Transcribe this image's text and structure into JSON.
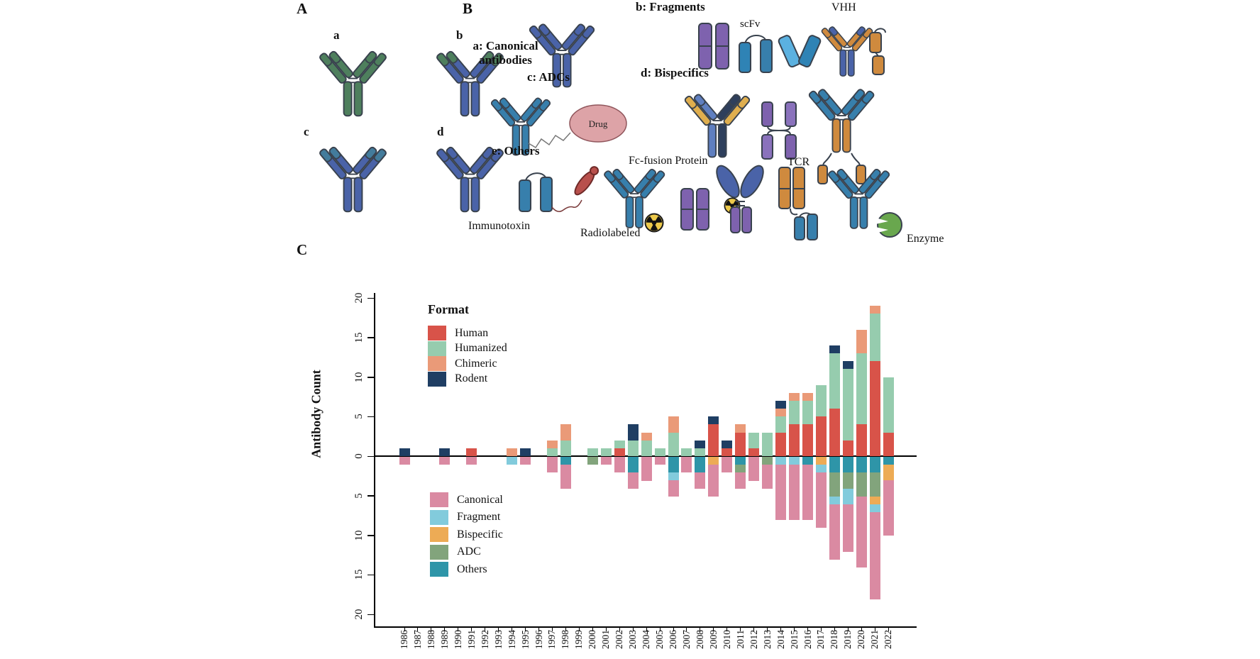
{
  "figure": {
    "panel_a_label": "A",
    "panel_b_label": "B",
    "panel_c_label": "C"
  },
  "panel_a": {
    "antibody_labels": [
      "a",
      "b",
      "c",
      "d"
    ]
  },
  "panel_b": {
    "heading_canonical": "a: Canonical antibodies",
    "heading_fragments": "b: Fragments",
    "heading_adcs": "c: ADCs",
    "heading_bispecifics": "d: Bispecifics",
    "heading_others": "e: Others",
    "label_scfv": "scFv",
    "label_vhh": "VHH",
    "label_drug": "Drug",
    "label_immunotoxin": "Immunotoxin",
    "label_radiolabeled": "Radiolabeled",
    "label_fc_fusion": "Fc-fusion Protein",
    "label_tcr": "TCR",
    "label_enzyme": "Enzyme"
  },
  "chart_data": {
    "type": "bar",
    "subtype": "mirrored-stacked",
    "title": "",
    "xlabel": "",
    "ylabel": "Antibody Count",
    "ylim_top": [
      0,
      20
    ],
    "ylim_bottom": [
      0,
      20
    ],
    "grid": false,
    "y_ticks_top": [
      20,
      15,
      10,
      5,
      0
    ],
    "y_ticks_bottom": [
      5,
      10,
      15,
      20
    ],
    "categories": [
      "1986",
      "1987",
      "1988",
      "1989",
      "1990",
      "1991",
      "1992",
      "1993",
      "1994",
      "1995",
      "1996",
      "1997",
      "1998",
      "1999",
      "2000",
      "2001",
      "2002",
      "2003",
      "2004",
      "2005",
      "2006",
      "2007",
      "2008",
      "2009",
      "2010",
      "2011",
      "2012",
      "2013",
      "2014",
      "2015",
      "2016",
      "2017",
      "2018",
      "2019",
      "2020",
      "2021",
      "2022"
    ],
    "format_legend_title": "Format",
    "series_above": [
      {
        "name": "Human",
        "color": "#d85349",
        "values": [
          0,
          0,
          0,
          0,
          0,
          1,
          0,
          0,
          0,
          0,
          0,
          0,
          0,
          0,
          0,
          0,
          1,
          0,
          0,
          0,
          0,
          0,
          0,
          4,
          1,
          3,
          1,
          0,
          3,
          4,
          4,
          5,
          6,
          2,
          4,
          12,
          3
        ]
      },
      {
        "name": "Humanized",
        "color": "#96ccae",
        "values": [
          0,
          0,
          0,
          0,
          0,
          0,
          0,
          0,
          0,
          0,
          0,
          1,
          2,
          0,
          1,
          1,
          1,
          2,
          2,
          1,
          3,
          1,
          1,
          0,
          0,
          0,
          2,
          3,
          2,
          3,
          3,
          4,
          7,
          9,
          9,
          6,
          7
        ]
      },
      {
        "name": "Chimeric",
        "color": "#ea9a78",
        "values": [
          0,
          0,
          0,
          0,
          0,
          0,
          0,
          0,
          1,
          0,
          0,
          1,
          2,
          0,
          0,
          0,
          0,
          0,
          1,
          0,
          2,
          0,
          0,
          0,
          0,
          1,
          0,
          0,
          1,
          1,
          1,
          0,
          0,
          0,
          3,
          1,
          0
        ]
      },
      {
        "name": "Rodent",
        "color": "#1f3e63",
        "values": [
          1,
          0,
          0,
          1,
          0,
          0,
          0,
          0,
          0,
          1,
          0,
          0,
          0,
          0,
          0,
          0,
          0,
          2,
          0,
          0,
          0,
          0,
          1,
          1,
          1,
          0,
          0,
          0,
          1,
          0,
          0,
          0,
          1,
          1,
          0,
          0,
          0
        ]
      }
    ],
    "series_below": [
      {
        "name": "Canonical",
        "color": "#da8aa2",
        "values": [
          1,
          0,
          0,
          1,
          0,
          1,
          0,
          0,
          0,
          1,
          0,
          2,
          3,
          0,
          0,
          1,
          2,
          2,
          3,
          1,
          2,
          2,
          2,
          4,
          2,
          2,
          3,
          3,
          7,
          7,
          7,
          7,
          7,
          6,
          9,
          11,
          7
        ]
      },
      {
        "name": "Fragment",
        "color": "#82cbdc",
        "values": [
          0,
          0,
          0,
          0,
          0,
          0,
          0,
          0,
          1,
          0,
          0,
          0,
          0,
          0,
          0,
          0,
          0,
          0,
          0,
          0,
          1,
          0,
          0,
          0,
          0,
          0,
          0,
          0,
          1,
          1,
          0,
          1,
          1,
          2,
          0,
          1,
          0
        ]
      },
      {
        "name": "Bispecific",
        "color": "#edab55",
        "values": [
          0,
          0,
          0,
          0,
          0,
          0,
          0,
          0,
          0,
          0,
          0,
          0,
          0,
          0,
          0,
          0,
          0,
          0,
          0,
          0,
          0,
          0,
          0,
          1,
          0,
          0,
          0,
          0,
          0,
          0,
          0,
          1,
          0,
          0,
          0,
          1,
          2
        ]
      },
      {
        "name": "ADC",
        "color": "#82a47c",
        "values": [
          0,
          0,
          0,
          0,
          0,
          0,
          0,
          0,
          0,
          0,
          0,
          0,
          0,
          0,
          1,
          0,
          0,
          0,
          0,
          0,
          0,
          0,
          0,
          0,
          0,
          1,
          0,
          1,
          0,
          0,
          0,
          0,
          3,
          2,
          3,
          3,
          0
        ]
      },
      {
        "name": "Others",
        "color": "#2e95a8",
        "values": [
          0,
          0,
          0,
          0,
          0,
          0,
          0,
          0,
          0,
          0,
          0,
          0,
          1,
          0,
          0,
          0,
          0,
          2,
          0,
          0,
          2,
          0,
          2,
          0,
          0,
          1,
          0,
          0,
          0,
          0,
          1,
          0,
          2,
          2,
          2,
          2,
          1
        ]
      }
    ],
    "legend_position_top": "upper-left-inside",
    "legend_position_bottom": "lower-left-inside"
  }
}
